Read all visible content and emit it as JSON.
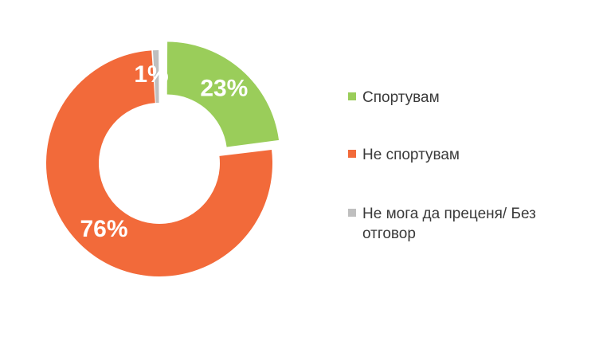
{
  "chart_data": {
    "type": "pie",
    "donut": true,
    "exploded_slice": "Спортувам",
    "slices": [
      {
        "label": "Спортувам",
        "value": 23,
        "display": "23%",
        "color": "#9ACD5A"
      },
      {
        "label": "Не спортувам",
        "value": 76,
        "display": "76%",
        "color": "#F26A3A"
      },
      {
        "label": "Не мога да преценя/ Без отговор",
        "value": 1,
        "display": "1%",
        "color": "#BFBFBF"
      }
    ],
    "legend_placement": "right"
  }
}
